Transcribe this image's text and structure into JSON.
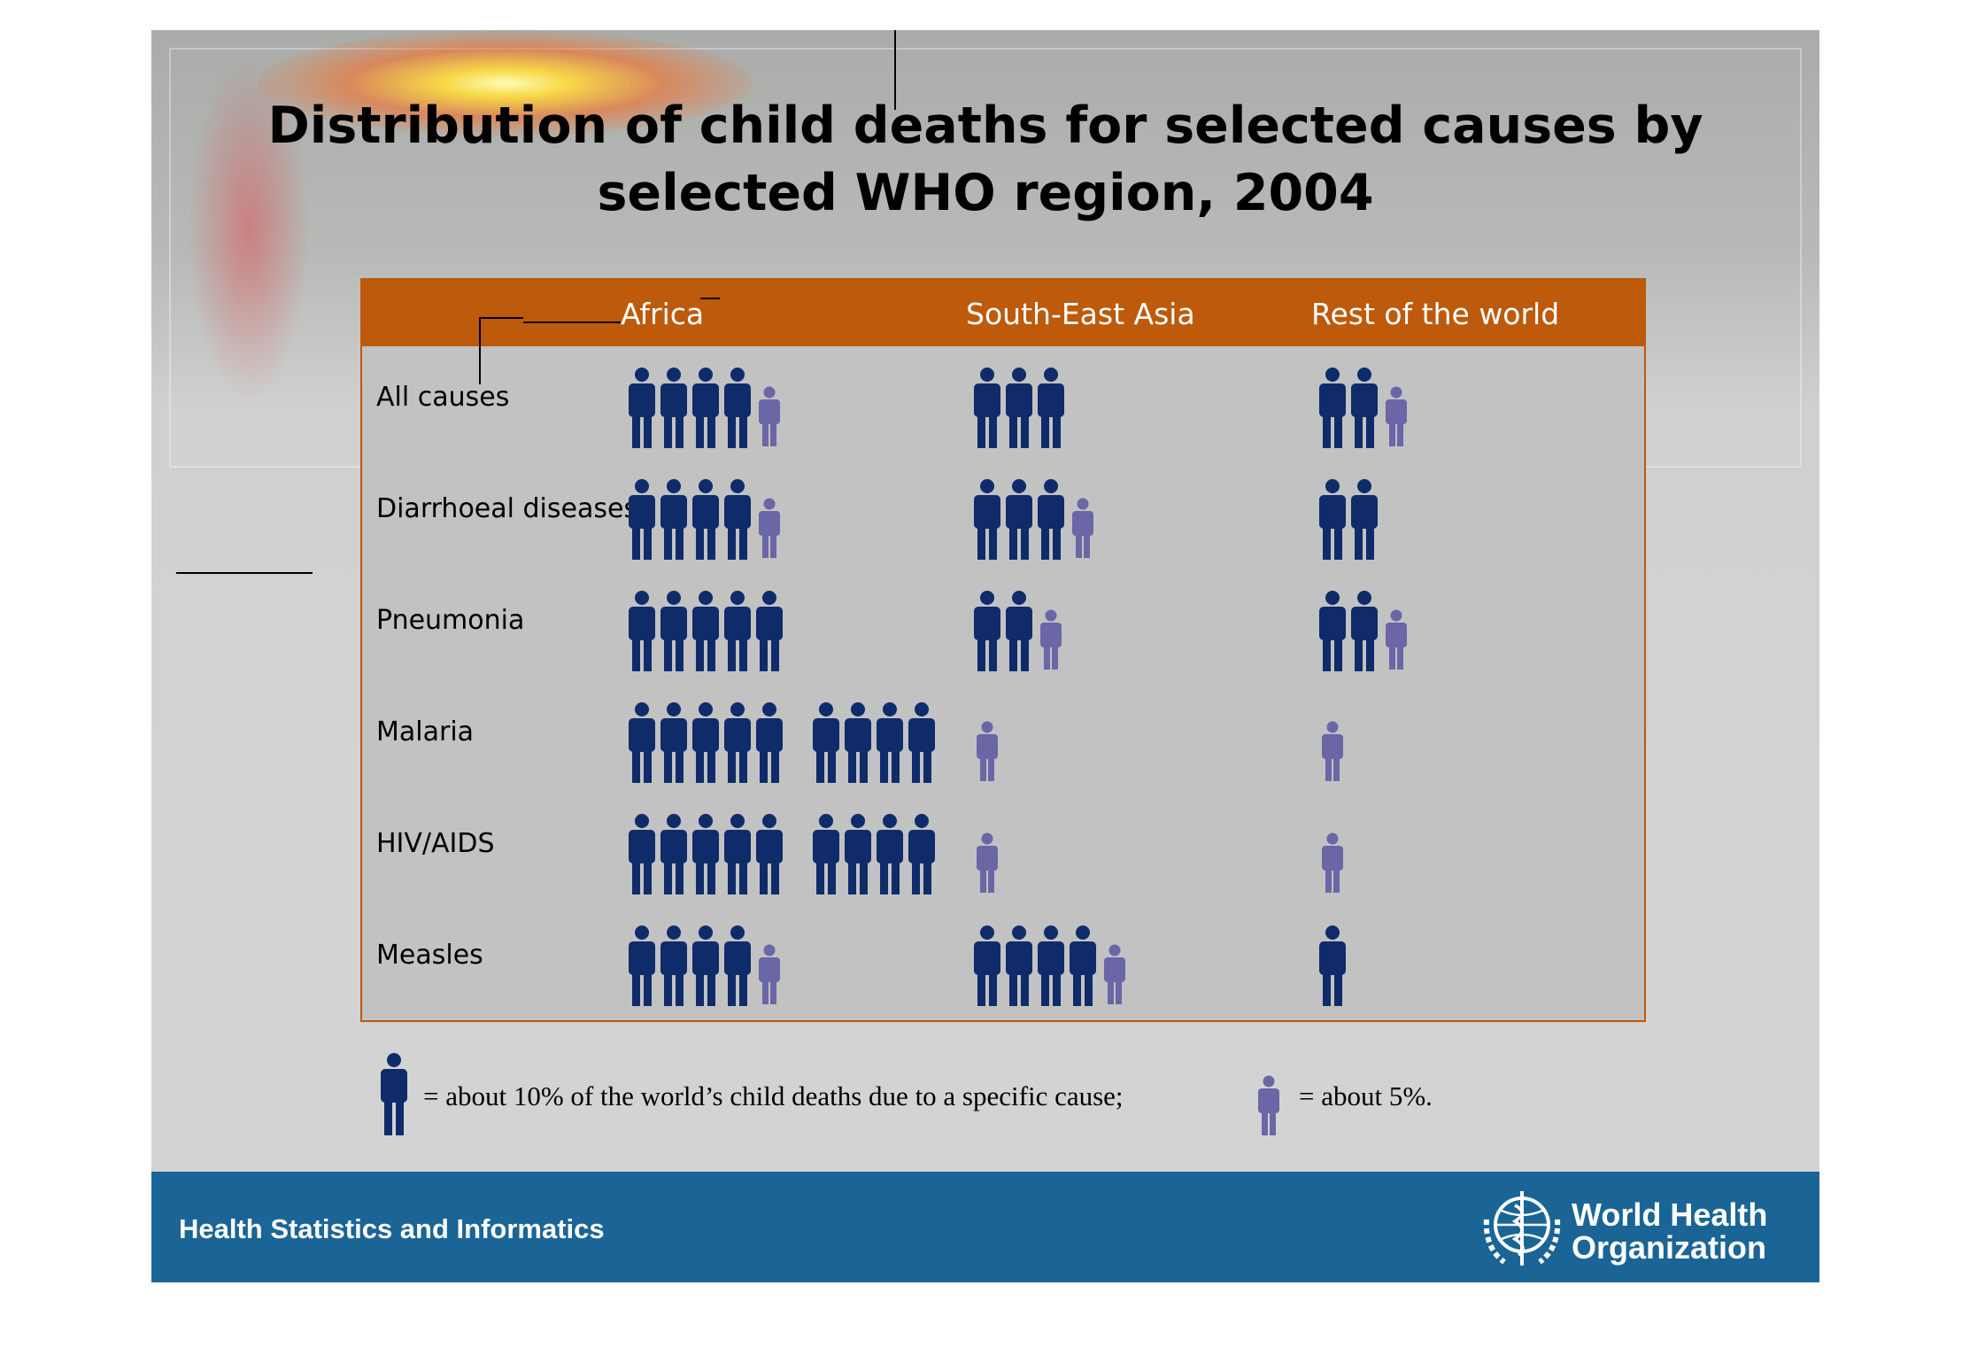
{
  "title_line1": "Distribution of child deaths for selected causes by",
  "title_line2": "selected WHO region, 2004",
  "footer": {
    "label": "Health Statistics and Informatics",
    "org_line1": "World Health",
    "org_line2": "Organization"
  },
  "legend": {
    "full_text": "= about 10% of the world’s child deaths due to a specific cause;",
    "half_text": "= about 5%."
  },
  "colors": {
    "header": "#bd5a0b",
    "full_icon": "#0f2b6a",
    "half_icon": "#6b66a6",
    "panel": "#c2c2c2",
    "footer": "#1a6596"
  },
  "icons": {
    "full": "person-icon-large",
    "half": "person-icon-small"
  },
  "chart_data": {
    "type": "table",
    "unit": "percent of world's child deaths for the cause",
    "columns": [
      "Africa",
      "South-East Asia",
      "Rest of the world"
    ],
    "rows": [
      {
        "label": "All causes",
        "values": [
          45,
          30,
          25
        ]
      },
      {
        "label": "Diarrhoeal diseases",
        "values": [
          45,
          35,
          20
        ]
      },
      {
        "label": "Pneumonia",
        "values": [
          50,
          25,
          25
        ]
      },
      {
        "label": "Malaria",
        "values": [
          90,
          5,
          5
        ]
      },
      {
        "label": "HIV/AIDS",
        "values": [
          90,
          5,
          5
        ]
      },
      {
        "label": "Measles",
        "values": [
          45,
          45,
          10
        ]
      }
    ]
  }
}
